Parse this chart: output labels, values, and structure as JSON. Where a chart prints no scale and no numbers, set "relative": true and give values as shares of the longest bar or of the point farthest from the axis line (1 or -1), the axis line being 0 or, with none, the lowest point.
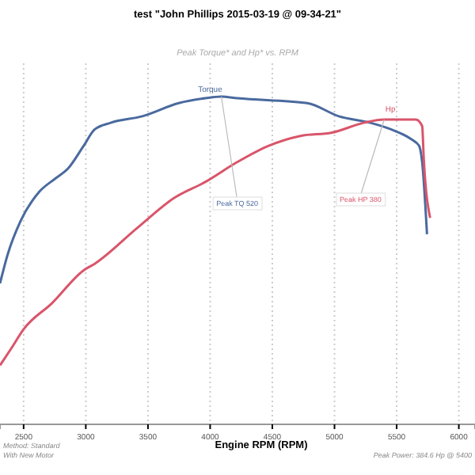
{
  "chart_data": {
    "type": "line",
    "title": "test \"John Phillips 2015-03-19 @ 09-34-21\"",
    "subtitle": "Peak Torque* and Hp* vs. RPM",
    "xlabel": "Engine RPM (RPM)",
    "relative": true,
    "xlim": [
      2310,
      6130
    ],
    "xticks": [
      2500,
      3000,
      3500,
      4000,
      4500,
      5000,
      5500,
      6000
    ],
    "grid": "x",
    "line_style": "solid",
    "marker": "none",
    "series": [
      {
        "color": "#4a6a9e",
        "x": [
          2310,
          2373,
          2475,
          2627,
          2755,
          2856,
          2983,
          3072,
          3200,
          3454,
          3747,
          3963,
          4090,
          4217,
          4781,
          5035,
          5289,
          5455,
          5617,
          5680,
          5705,
          5744
        ],
        "values": [
          0.43,
          0.52,
          0.62,
          0.71,
          0.75,
          0.78,
          0.85,
          0.9,
          0.92,
          0.94,
          0.98,
          0.995,
          1.0,
          0.995,
          0.98,
          0.94,
          0.92,
          0.9,
          0.87,
          0.85,
          0.8,
          0.58
        ]
      },
      {
        "color": "#d9556a",
        "x": [
          2310,
          2398,
          2500,
          2729,
          2983,
          3072,
          3416,
          3708,
          3963,
          4217,
          4471,
          4726,
          4980,
          5235,
          5400,
          5654,
          5705,
          5718,
          5769
        ],
        "values": [
          0.18,
          0.23,
          0.29,
          0.37,
          0.47,
          0.49,
          0.6,
          0.69,
          0.74,
          0.8,
          0.85,
          0.88,
          0.89,
          0.92,
          0.93,
          0.93,
          0.91,
          0.81,
          0.63
        ]
      }
    ],
    "annotations": [
      {
        "text": "Torque",
        "x": 4000,
        "y": 0.995
      },
      {
        "text": "Hp",
        "x": 5450,
        "y": 0.93
      },
      {
        "text": "Peak TQ 520",
        "x": 4090,
        "y": 1.0
      },
      {
        "text": "Peak HP 380",
        "x": 5400,
        "y": 0.93
      },
      "Method: Standard",
      "With New Motor",
      "Peak Power: 384.6 Hp @ 5400"
    ]
  }
}
